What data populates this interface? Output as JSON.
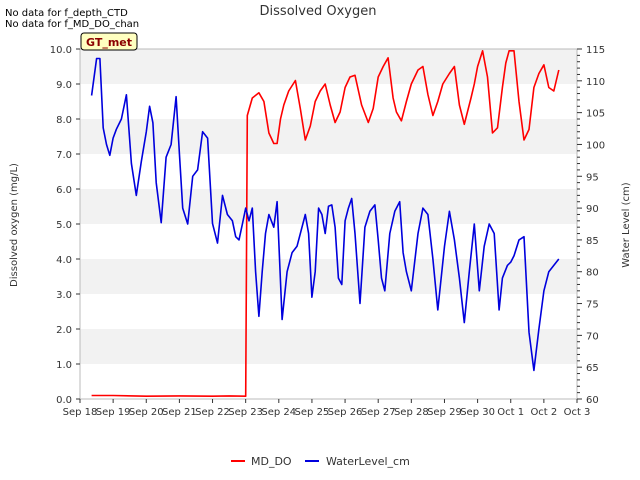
{
  "chart_data": {
    "type": "line",
    "title": "Dissolved Oxygen",
    "no_data_messages": [
      "No data for f_depth_CTD",
      "No data for f_MD_DO_chan"
    ],
    "badge": "GT_met",
    "ylabel_left": "Dissolved oxygen (mg/L)",
    "ylabel_right": "Water Level (cm)",
    "ylim_left": [
      0,
      10
    ],
    "ylim_right": [
      60,
      115
    ],
    "xlim": [
      0,
      15
    ],
    "x_tick_labels": [
      "Sep 18",
      "Sep 19",
      "Sep 20",
      "Sep 21",
      "Sep 22",
      "Sep 23",
      "Sep 24",
      "Sep 25",
      "Sep 26",
      "Sep 27",
      "Sep 28",
      "Sep 29",
      "Sep 30",
      "Oct 1",
      "Oct 2",
      "Oct 3"
    ],
    "y_tick_labels_left": [
      "0.0",
      "1.0",
      "2.0",
      "3.0",
      "4.0",
      "5.0",
      "6.0",
      "7.0",
      "8.0",
      "9.0",
      "10.0"
    ],
    "y_tick_labels_right": [
      "60",
      "65",
      "70",
      "75",
      "80",
      "85",
      "90",
      "95",
      "100",
      "105",
      "110",
      "115"
    ],
    "grid": "horizontal bands",
    "legend_position": "bottom-center",
    "series": [
      {
        "name": "MD_DO",
        "color": "#ff0000",
        "axis": "left",
        "x": [
          0.35,
          1,
          2,
          3,
          4,
          4.5,
          5,
          5.05,
          5.2,
          5.4,
          5.55,
          5.7,
          5.85,
          5.95,
          6.05,
          6.15,
          6.3,
          6.5,
          6.65,
          6.8,
          6.95,
          7.1,
          7.25,
          7.4,
          7.55,
          7.7,
          7.85,
          8.0,
          8.15,
          8.3,
          8.5,
          8.7,
          8.85,
          9.0,
          9.15,
          9.3,
          9.45,
          9.55,
          9.7,
          9.85,
          10.0,
          10.2,
          10.35,
          10.5,
          10.65,
          10.8,
          10.95,
          11.15,
          11.3,
          11.45,
          11.6,
          11.8,
          11.9,
          12.0,
          12.15,
          12.3,
          12.45,
          12.6,
          12.75,
          12.85,
          12.95,
          13.1,
          13.25,
          13.4,
          13.55,
          13.7,
          13.85,
          14.0,
          14.15,
          14.3,
          14.45
        ],
        "y": [
          0.1,
          0.1,
          0.08,
          0.09,
          0.08,
          0.09,
          0.08,
          8.1,
          8.6,
          8.75,
          8.5,
          7.6,
          7.3,
          7.3,
          8.0,
          8.4,
          8.8,
          9.1,
          8.3,
          7.4,
          7.8,
          8.5,
          8.8,
          9.0,
          8.4,
          7.9,
          8.2,
          8.9,
          9.2,
          9.25,
          8.4,
          7.9,
          8.3,
          9.2,
          9.5,
          9.75,
          8.6,
          8.2,
          7.95,
          8.5,
          9.0,
          9.4,
          9.5,
          8.7,
          8.1,
          8.5,
          9.0,
          9.3,
          9.5,
          8.4,
          7.85,
          8.6,
          9.0,
          9.5,
          9.95,
          9.2,
          7.6,
          7.75,
          8.9,
          9.6,
          9.95,
          9.95,
          8.5,
          7.4,
          7.7,
          8.9,
          9.3,
          9.55,
          8.9,
          8.8,
          9.4
        ]
      },
      {
        "name": "WaterLevel_cm",
        "color": "#0000dd",
        "axis": "right",
        "x": [
          0.35,
          0.5,
          0.6,
          0.7,
          0.8,
          0.9,
          1.0,
          1.1,
          1.25,
          1.4,
          1.55,
          1.7,
          1.85,
          2.0,
          2.1,
          2.2,
          2.3,
          2.45,
          2.6,
          2.75,
          2.9,
          3.0,
          3.1,
          3.25,
          3.4,
          3.55,
          3.7,
          3.85,
          4.0,
          4.15,
          4.3,
          4.45,
          4.6,
          4.7,
          4.8,
          4.9,
          5.0,
          5.1,
          5.2,
          5.3,
          5.4,
          5.5,
          5.6,
          5.7,
          5.85,
          5.95,
          6.1,
          6.25,
          6.4,
          6.55,
          6.7,
          6.8,
          6.9,
          7.0,
          7.1,
          7.2,
          7.3,
          7.4,
          7.5,
          7.6,
          7.7,
          7.8,
          7.9,
          8.0,
          8.1,
          8.2,
          8.3,
          8.45,
          8.6,
          8.75,
          8.9,
          9.0,
          9.1,
          9.2,
          9.35,
          9.5,
          9.65,
          9.75,
          9.85,
          10.0,
          10.2,
          10.35,
          10.5,
          10.65,
          10.8,
          11.0,
          11.15,
          11.3,
          11.45,
          11.6,
          11.75,
          11.9,
          12.05,
          12.2,
          12.35,
          12.5,
          12.65,
          12.75,
          12.9,
          13.0,
          13.1,
          13.25,
          13.4,
          13.55,
          13.7,
          13.85,
          14.0,
          14.15,
          14.3,
          14.45
        ],
        "y": [
          107.7,
          113.5,
          113.5,
          102.6,
          100.0,
          98.3,
          101.0,
          102.4,
          104.0,
          107.8,
          97.0,
          92.0,
          97.3,
          102.0,
          106.0,
          103.4,
          94.0,
          87.7,
          98.0,
          100.0,
          107.5,
          98.6,
          90.0,
          87.5,
          95.0,
          96.0,
          102.0,
          101.0,
          87.6,
          84.5,
          92.0,
          89.0,
          88.0,
          85.5,
          85.0,
          87.5,
          90.0,
          88.0,
          90.0,
          80.0,
          73.0,
          80.0,
          86.0,
          89.0,
          87.0,
          91.0,
          72.5,
          80.0,
          83.0,
          84.0,
          87.0,
          89.0,
          86.0,
          76.0,
          80.0,
          90.0,
          89.0,
          86.0,
          90.3,
          90.5,
          87.0,
          79.0,
          78.0,
          88.0,
          90.0,
          91.5,
          86.0,
          75.0,
          87.0,
          89.5,
          90.5,
          85.0,
          79.0,
          77.0,
          86.0,
          89.5,
          91.0,
          83.0,
          80.0,
          77.0,
          86.0,
          90.0,
          89.0,
          82.0,
          74.0,
          84.0,
          89.5,
          85.0,
          79.0,
          72.0,
          80.0,
          87.5,
          77.0,
          84.0,
          87.5,
          86.0,
          74.0,
          79.0,
          81.0,
          81.5,
          82.5,
          85.0,
          85.5,
          70.5,
          64.5,
          71.0,
          77.0,
          80.0,
          81.0,
          82.0
        ]
      }
    ]
  }
}
